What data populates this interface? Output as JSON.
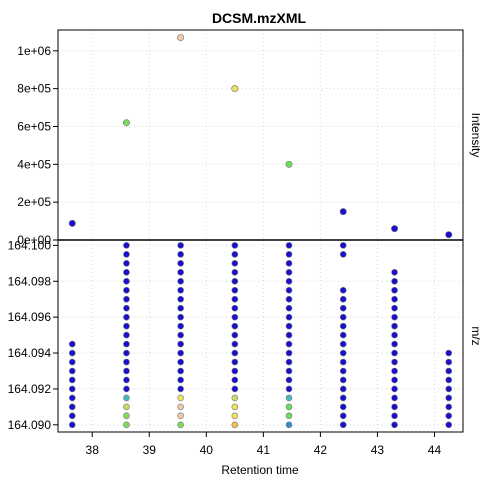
{
  "chart_data": {
    "type": "scatter",
    "title": "DCSM.mzXML",
    "xlabel": "Retention time",
    "ylabel_top": "Intensity",
    "ylabel_bottom": "m/z",
    "xlim": [
      37.4,
      44.5
    ],
    "x_ticks": [
      "38",
      "39",
      "40",
      "41",
      "42",
      "43",
      "44"
    ],
    "grid": true,
    "top": {
      "ylim": [
        0,
        1110000
      ],
      "y_ticks": [
        {
          "value": 0,
          "label": "0e+00"
        },
        {
          "value": 200000,
          "label": "2e+05"
        },
        {
          "value": 400000,
          "label": "4e+05"
        },
        {
          "value": 600000,
          "label": "6e+05"
        },
        {
          "value": 800000,
          "label": "8e+05"
        },
        {
          "value": 1000000,
          "label": "1e+06"
        }
      ],
      "points": [
        {
          "x": 37.65,
          "y": 88000,
          "color": "#1a0ed0"
        },
        {
          "x": 38.6,
          "y": 620000,
          "color": "#7fdc60"
        },
        {
          "x": 39.55,
          "y": 1070000,
          "color": "#f0c8a8"
        },
        {
          "x": 40.5,
          "y": 800000,
          "color": "#f0e060"
        },
        {
          "x": 41.45,
          "y": 400000,
          "color": "#6cdc5c"
        },
        {
          "x": 42.4,
          "y": 150000,
          "color": "#1a0ed0"
        },
        {
          "x": 43.3,
          "y": 60000,
          "color": "#1a0ed0"
        },
        {
          "x": 44.25,
          "y": 28000,
          "color": "#1a0ed0"
        }
      ]
    },
    "bottom": {
      "ylim": [
        164.0896,
        164.1003
      ],
      "y_ticks": [
        {
          "value": 164.09,
          "label": "164.090"
        },
        {
          "value": 164.092,
          "label": "164.092"
        },
        {
          "value": 164.094,
          "label": "164.094"
        },
        {
          "value": 164.096,
          "label": "164.096"
        },
        {
          "value": 164.098,
          "label": "164.098"
        },
        {
          "value": 164.1,
          "label": "164.100"
        }
      ],
      "mz_start": 164.09,
      "mz_step": 0.0005,
      "columns": [
        {
          "x": 37.65,
          "count": 10,
          "colors": []
        },
        {
          "x": 38.6,
          "count": 21,
          "colors": [
            "#7fdc60",
            "#7fdc60",
            "#c6dc68",
            "#48b8c0"
          ]
        },
        {
          "x": 39.55,
          "count": 21,
          "colors": [
            "#7fdc60",
            "#f0c8a8",
            "#f0c8a8",
            "#f0e060"
          ]
        },
        {
          "x": 40.5,
          "count": 21,
          "colors": [
            "#f0c050",
            "#f0e060",
            "#f0e060",
            "#c6dc68"
          ]
        },
        {
          "x": 41.45,
          "count": 21,
          "colors": [
            "#3a8ad0",
            "#6cdc5c",
            "#6cdc5c",
            "#48b8c0"
          ]
        },
        {
          "x": 42.4,
          "count": 21,
          "skip": [
            16,
            17,
            18
          ],
          "colors": []
        },
        {
          "x": 43.3,
          "count": 18,
          "colors": []
        },
        {
          "x": 44.25,
          "count": 9,
          "colors": []
        }
      ],
      "default_color": "#1a0ed0"
    }
  }
}
